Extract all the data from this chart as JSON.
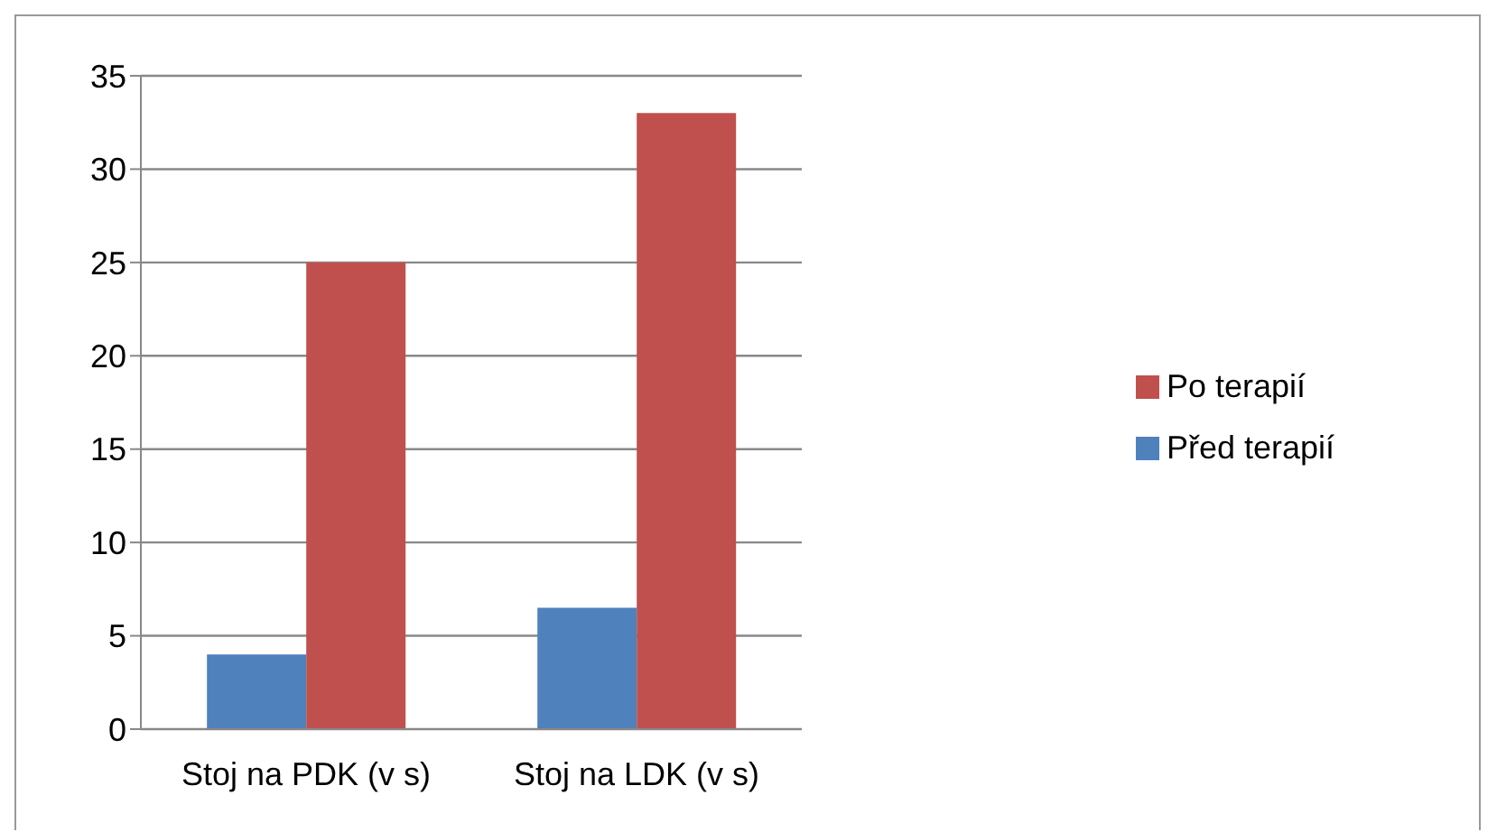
{
  "chart_data": {
    "type": "bar",
    "categories": [
      "Stoj na PDK (v s)",
      "Stoj na LDK (v s)"
    ],
    "series": [
      {
        "name": "Před terapií",
        "color": "#4f81bd",
        "values": [
          4,
          6.5
        ]
      },
      {
        "name": "Po terapií",
        "color": "#c0504d",
        "values": [
          25,
          33
        ]
      }
    ],
    "ylim": [
      0,
      35
    ],
    "yticks": [
      0,
      5,
      10,
      15,
      20,
      25,
      30,
      35
    ],
    "grid": "y",
    "legend": "right"
  }
}
